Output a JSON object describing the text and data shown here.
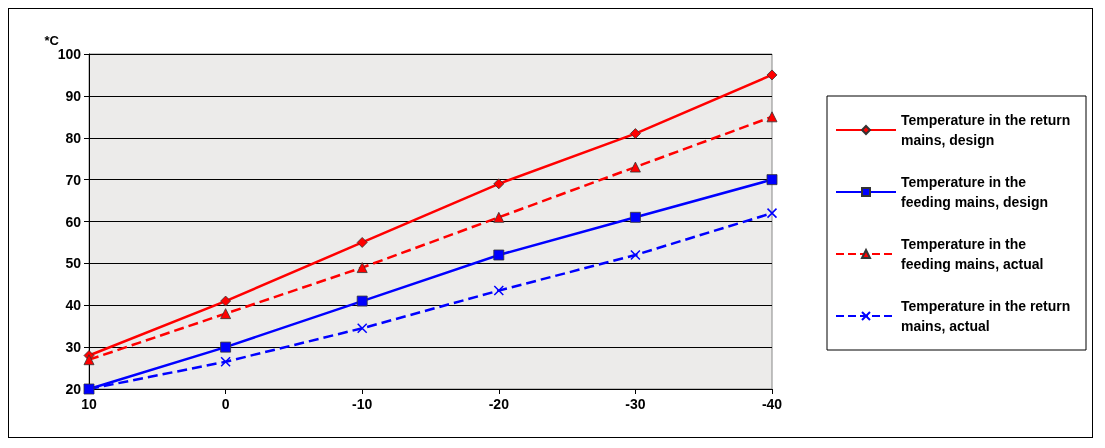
{
  "chart_data": {
    "type": "line",
    "ylabel": "*C",
    "categories": [
      "10",
      "0",
      "-10",
      "-20",
      "-30",
      "-40"
    ],
    "ylim": [
      20,
      100
    ],
    "yticks": [
      20,
      30,
      40,
      50,
      60,
      70,
      80,
      90,
      100
    ],
    "grid": "y",
    "legend": "right",
    "series": [
      {
        "name": "Temperature in the return mains, design",
        "color": "#ff0000",
        "marker": "diamond",
        "line_style": "solid",
        "values": [
          28,
          41,
          55,
          69,
          81,
          95
        ]
      },
      {
        "name": "Temperature in the feeding mains, design",
        "color": "#0000ff",
        "marker": "square",
        "line_style": "solid",
        "values": [
          20,
          30,
          41,
          52,
          61,
          70
        ]
      },
      {
        "name": "Temperature in the feeding mains, actual",
        "color": "#ff0000",
        "marker": "triangle",
        "line_style": "dashed",
        "values": [
          27,
          38,
          49,
          61,
          73,
          85
        ]
      },
      {
        "name": "Temperature in the return mains, actual",
        "color": "#0000ff",
        "marker": "cross",
        "line_style": "dashed",
        "values": [
          20,
          26.5,
          34.5,
          43.5,
          52,
          62
        ]
      }
    ]
  }
}
